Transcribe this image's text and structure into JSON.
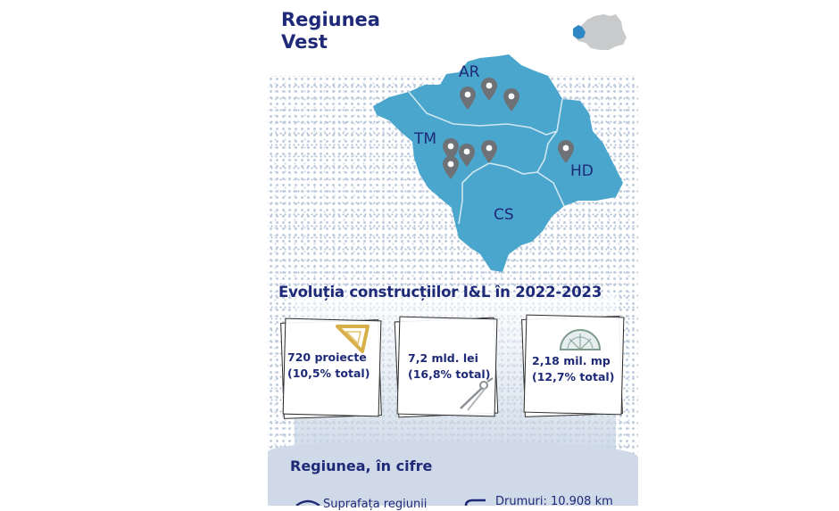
{
  "title": {
    "line1": "Regiunea",
    "line2": "Vest"
  },
  "map": {
    "counties": [
      "AR",
      "TM",
      "HD",
      "CS"
    ],
    "colors": {
      "region": "#4aa6cc",
      "border": "#cfe7f2",
      "pin": "#6e7276",
      "text": "#1e2a78"
    }
  },
  "evolution": {
    "title": "Evoluția construcțiilor I&L în 2022-2023",
    "cards": [
      {
        "line1": "720 proiecte",
        "line2": "(10,5% total)",
        "icon": "set-square-icon"
      },
      {
        "line1": "7,2 mld. lei",
        "line2": "(16,8% total)",
        "icon": "compass-icon"
      },
      {
        "line1": "2,18 mil. mp",
        "line2": "(12,7% total)",
        "icon": "protractor-icon"
      }
    ]
  },
  "figures": {
    "title": "Regiunea, în cifre",
    "stat_left_partial": "Suprafața regiunii",
    "stat_roads": "Drumuri: 10.908 km"
  }
}
